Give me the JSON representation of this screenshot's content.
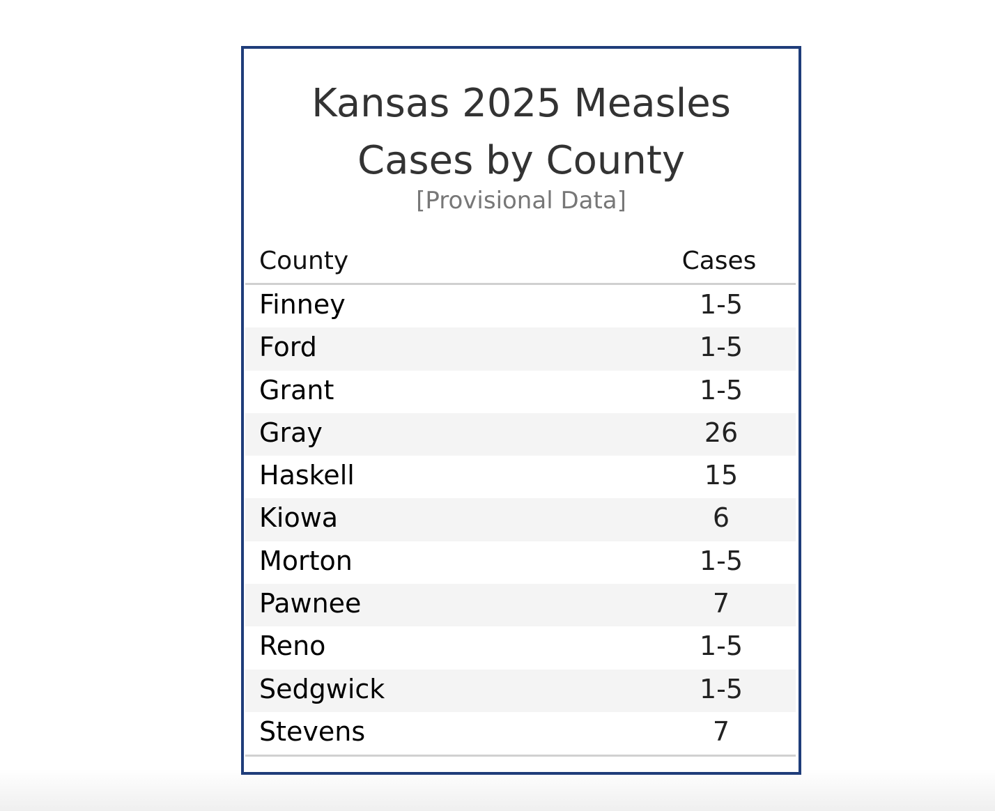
{
  "title_line1": "Kansas 2025 Measles",
  "title_line2": "Cases by County",
  "subtitle": "[Provisional Data]",
  "columns": [
    "County",
    "Cases"
  ],
  "rows": [
    {
      "county": "Finney",
      "cases": "1-5"
    },
    {
      "county": "Ford",
      "cases": "1-5"
    },
    {
      "county": "Grant",
      "cases": "1-5"
    },
    {
      "county": "Gray",
      "cases": "26"
    },
    {
      "county": "Haskell",
      "cases": "15"
    },
    {
      "county": "Kiowa",
      "cases": "6"
    },
    {
      "county": "Morton",
      "cases": "1-5"
    },
    {
      "county": "Pawnee",
      "cases": "7"
    },
    {
      "county": "Reno",
      "cases": "1-5"
    },
    {
      "county": "Sedgwick",
      "cases": "1-5"
    },
    {
      "county": "Stevens",
      "cases": "7"
    }
  ],
  "colors": {
    "border": "#1f3d7a",
    "row_alt": "#f4f4f4"
  }
}
